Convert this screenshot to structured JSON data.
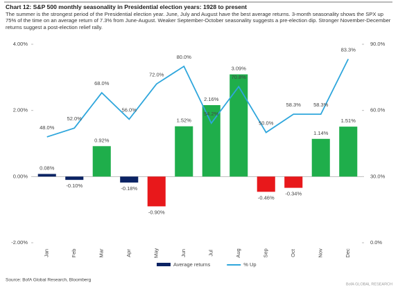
{
  "chart_data": {
    "type": "bar-line",
    "title": "Chart 12: S&P 500 monthly seasonality in Presidential election years: 1928 to present",
    "subtitle": "The summer is the strongest period of the Presidential election year. June, July and August have the best average returns. 3-month seasonality shows the SPX up 75% of the time on an average return of 7.3% from June-August. Weaker September-October seasonality suggests a pre-election dip. Stronger November-December returns suggest a post-election relief rally.",
    "categories": [
      "Jan",
      "Feb",
      "Mar",
      "Apr",
      "May",
      "Jun",
      "Jul",
      "Aug",
      "Sep",
      "Oct",
      "Nov",
      "Dec"
    ],
    "series": [
      {
        "name": "Average returns",
        "type": "bar",
        "color": "#0b2364",
        "colors": [
          "#0b2364",
          "#0b2364",
          "#1fae4b",
          "#0b2364",
          "#e8181b",
          "#1fae4b",
          "#1fae4b",
          "#1fae4b",
          "#e8181b",
          "#e8181b",
          "#1fae4b",
          "#1fae4b"
        ],
        "values": [
          0.08,
          -0.1,
          0.92,
          -0.18,
          -0.9,
          1.52,
          2.16,
          3.09,
          -0.46,
          -0.34,
          1.14,
          1.51
        ],
        "value_labels": [
          "0.08%",
          "-0.10%",
          "0.92%",
          "-0.18%",
          "-0.90%",
          "1.52%",
          "2.16%",
          "3.09%",
          "-0.46%",
          "-0.34%",
          "1.14%",
          "1.51%"
        ]
      },
      {
        "name": "% Up",
        "type": "line",
        "axis": "y2",
        "color": "#2ea6dc",
        "values": [
          48.0,
          52.0,
          68.0,
          56.0,
          72.0,
          80.0,
          54.2,
          70.8,
          50.0,
          58.3,
          58.3,
          83.3
        ],
        "value_labels": [
          "48.0%",
          "52.0%",
          "68.0%",
          "56.0%",
          "72.0%",
          "80.0%",
          "54.2%",
          "70.8%",
          "50.0%",
          "58.3%",
          "58.3%",
          "83.3%"
        ]
      }
    ],
    "ylim": [
      -2,
      4
    ],
    "yticks": [
      {
        "value": -2,
        "label": "-2.00%"
      },
      {
        "value": 0,
        "label": "0.00%"
      },
      {
        "value": 2,
        "label": "2.00%"
      },
      {
        "value": 4,
        "label": "4.00%"
      }
    ],
    "y2lim": [
      0,
      90
    ],
    "y2ticks": [
      {
        "value": 0,
        "label": "0.0%"
      },
      {
        "value": 30,
        "label": "30.0%"
      },
      {
        "value": 60,
        "label": "60.0%"
      },
      {
        "value": 90,
        "label": "90.0%"
      }
    ],
    "grid": false,
    "legend": "bottom",
    "source": "Source: BofA Global Research, Bloomberg",
    "watermark": "BofA GLOBAL RESEARCH"
  }
}
